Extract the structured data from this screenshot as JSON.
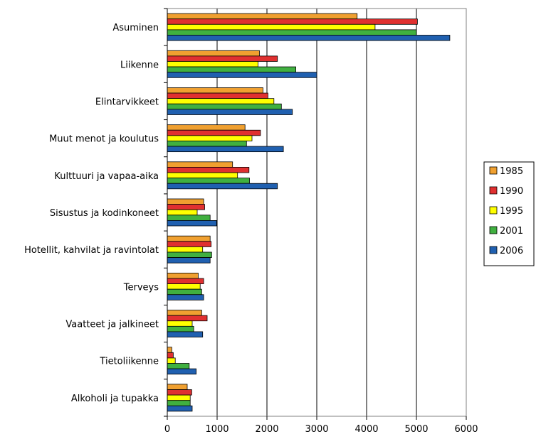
{
  "chart_data": {
    "type": "bar",
    "orientation": "horizontal",
    "categories": [
      "Asuminen",
      "Liikenne",
      "Elintarvikkeet",
      "Muut menot ja koulutus",
      "Kulttuuri ja vapaa-aika",
      "Sisustus ja kodinkoneet",
      "Hotellit, kahvilat ja ravintolat",
      "Terveys",
      "Vaatteet ja jalkineet",
      "Tietoliikenne",
      "Alkoholi ja tupakka"
    ],
    "series": [
      {
        "name": "1985",
        "color": "#f0a030",
        "values": [
          3810,
          1850,
          1920,
          1560,
          1310,
          730,
          860,
          620,
          690,
          90,
          400
        ]
      },
      {
        "name": "1990",
        "color": "#e03030",
        "values": [
          5020,
          2210,
          2020,
          1870,
          1640,
          750,
          880,
          730,
          800,
          120,
          490
        ]
      },
      {
        "name": "1995",
        "color": "#ffff00",
        "values": [
          4170,
          1820,
          2140,
          1700,
          1410,
          600,
          710,
          660,
          500,
          160,
          460
        ]
      },
      {
        "name": "2001",
        "color": "#40b040",
        "values": [
          5000,
          2580,
          2290,
          1590,
          1650,
          860,
          890,
          690,
          530,
          440,
          460
        ]
      },
      {
        "name": "2006",
        "color": "#2060b0",
        "values": [
          5670,
          3000,
          2510,
          2330,
          2210,
          990,
          860,
          730,
          710,
          580,
          500
        ]
      }
    ],
    "xlim": [
      0,
      6000
    ],
    "xticks": [
      0,
      1000,
      2000,
      3000,
      4000,
      5000,
      6000
    ],
    "grid": "vertical",
    "legend": "right",
    "title": "",
    "xlabel": "",
    "ylabel": ""
  }
}
